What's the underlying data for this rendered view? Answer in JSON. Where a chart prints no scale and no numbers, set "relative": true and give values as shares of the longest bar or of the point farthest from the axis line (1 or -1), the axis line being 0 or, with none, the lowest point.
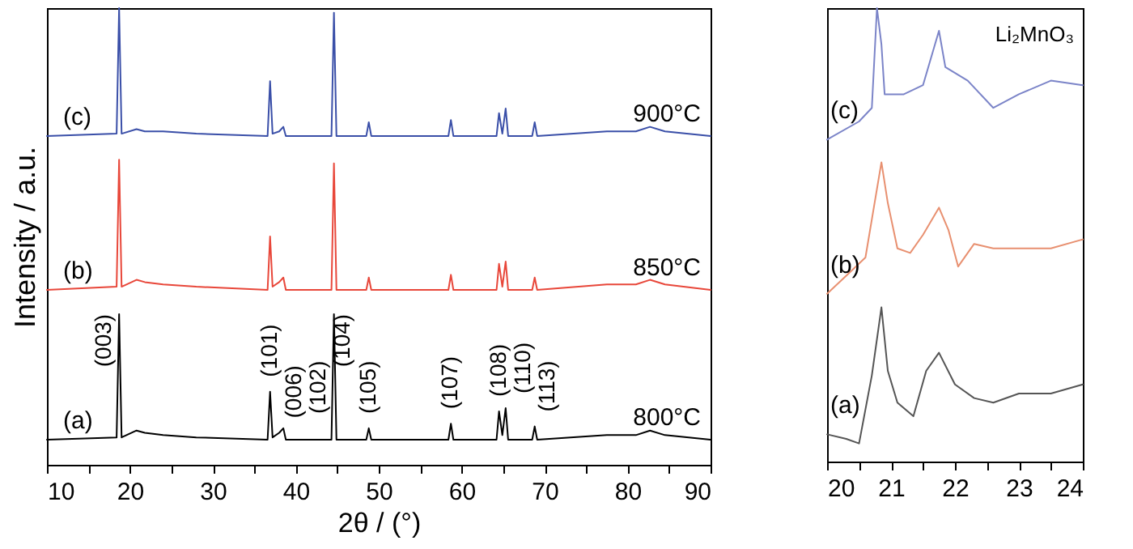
{
  "chart_data": [
    {
      "type": "line",
      "xlabel": "2θ / (°)",
      "ylabel": "Intensity / a.u.",
      "relative": true,
      "grid": false,
      "xlim": [
        10,
        90
      ],
      "xticks": [
        10,
        {
          "value": 15,
          "label": null
        },
        20,
        {
          "value": 25,
          "label": null
        },
        30,
        {
          "value": 35,
          "label": null
        },
        40,
        {
          "value": 45,
          "label": null
        },
        50,
        {
          "value": 55,
          "label": null
        },
        60,
        {
          "value": 65,
          "label": null
        },
        70,
        {
          "value": 75,
          "label": null
        },
        80,
        {
          "value": 85,
          "label": null
        },
        90
      ],
      "x": [
        10,
        18.4,
        18.7,
        19.0,
        20.8,
        21.8,
        24,
        28,
        36.6,
        36.9,
        37.2,
        38.0,
        38.5,
        38.8,
        44.3,
        44.6,
        44.9,
        48.5,
        48.8,
        49.1,
        58.4,
        58.7,
        59.0,
        64.2,
        64.5,
        64.9,
        65.3,
        65.6,
        68.5,
        68.8,
        69.1,
        77.5,
        81,
        82.7,
        84.5,
        90
      ],
      "series": [
        {
          "name": "(a)",
          "color": "#000000",
          "values": [
            0.055,
            0.06,
            0.33,
            0.06,
            0.075,
            0.07,
            0.065,
            0.06,
            0.055,
            0.16,
            0.06,
            0.07,
            0.08,
            0.055,
            0.055,
            0.33,
            0.055,
            0.055,
            0.08,
            0.055,
            0.055,
            0.09,
            0.055,
            0.055,
            0.117,
            0.065,
            0.124,
            0.055,
            0.055,
            0.084,
            0.055,
            0.065,
            0.065,
            0.075,
            0.065,
            0.055
          ]
        },
        {
          "name": "(b)",
          "color": "#e8473a",
          "values": [
            0.383,
            0.39,
            0.668,
            0.39,
            0.405,
            0.4,
            0.395,
            0.39,
            0.383,
            0.5,
            0.39,
            0.4,
            0.41,
            0.383,
            0.383,
            0.66,
            0.383,
            0.383,
            0.41,
            0.383,
            0.383,
            0.416,
            0.383,
            0.383,
            0.44,
            0.39,
            0.445,
            0.383,
            0.383,
            0.41,
            0.383,
            0.395,
            0.395,
            0.405,
            0.395,
            0.383
          ]
        },
        {
          "name": "(c)",
          "color": "#3a4fa8",
          "values": [
            0.72,
            0.725,
            1.0,
            0.725,
            0.735,
            0.73,
            0.73,
            0.725,
            0.72,
            0.84,
            0.725,
            0.73,
            0.74,
            0.72,
            0.72,
            0.99,
            0.72,
            0.72,
            0.75,
            0.72,
            0.72,
            0.755,
            0.72,
            0.72,
            0.77,
            0.725,
            0.78,
            0.72,
            0.72,
            0.75,
            0.72,
            0.73,
            0.73,
            0.74,
            0.73,
            0.72
          ]
        }
      ],
      "annotations": [
        "800°C",
        "850°C",
        "900°C",
        {
          "text": "(003)",
          "x": 18.7,
          "y": 0.33
        },
        {
          "text": "(101)",
          "x": 36.9,
          "y": 0.16
        },
        {
          "text": "(006)",
          "x": 38.0,
          "y": 0.07
        },
        {
          "text": "(102)",
          "x": 38.5,
          "y": 0.08
        },
        {
          "text": "(104)",
          "x": 44.6,
          "y": 0.33
        },
        {
          "text": "(105)",
          "x": 48.8,
          "y": 0.08
        },
        {
          "text": "(107)",
          "x": 58.7,
          "y": 0.09
        },
        {
          "text": "(108)",
          "x": 64.5,
          "y": 0.117
        },
        {
          "text": "(110)",
          "x": 65.3,
          "y": 0.124
        },
        {
          "text": "(113)",
          "x": 68.8,
          "y": 0.084
        }
      ]
    },
    {
      "type": "line",
      "title": "Li₂MnO₃",
      "relative": true,
      "grid": false,
      "xlim": [
        20,
        24
      ],
      "xticks": [
        20,
        {
          "value": 20.5,
          "label": null
        },
        21,
        {
          "value": 21.5,
          "label": null
        },
        22,
        {
          "value": 22.5,
          "label": null
        },
        23,
        {
          "value": 23.5,
          "label": null
        },
        24
      ],
      "series": [
        {
          "name": "(a)",
          "color": "#555555",
          "x": [
            20,
            20.3,
            20.5,
            20.7,
            20.85,
            20.95,
            21.1,
            21.35,
            21.55,
            21.75,
            22.0,
            22.3,
            22.6,
            23,
            23.5,
            24
          ],
          "values": [
            0.06,
            0.05,
            0.04,
            0.19,
            0.34,
            0.2,
            0.13,
            0.1,
            0.2,
            0.24,
            0.17,
            0.14,
            0.13,
            0.15,
            0.15,
            0.17
          ]
        },
        {
          "name": "(b)",
          "color": "#e89070",
          "x": [
            20,
            20.3,
            20.6,
            20.85,
            20.95,
            21.1,
            21.3,
            21.5,
            21.75,
            21.9,
            22.05,
            22.3,
            22.6,
            23,
            23.5,
            24
          ],
          "values": [
            0.37,
            0.41,
            0.45,
            0.66,
            0.57,
            0.47,
            0.46,
            0.5,
            0.56,
            0.51,
            0.43,
            0.48,
            0.47,
            0.47,
            0.47,
            0.49
          ]
        },
        {
          "name": "(c)",
          "color": "#7b84c8",
          "x": [
            20,
            20.5,
            20.7,
            20.78,
            20.85,
            20.9,
            21.2,
            21.5,
            21.75,
            21.85,
            22.2,
            22.6,
            23,
            23.5,
            24
          ],
          "values": [
            0.71,
            0.75,
            0.78,
            1.0,
            0.92,
            0.81,
            0.81,
            0.83,
            0.95,
            0.87,
            0.84,
            0.78,
            0.81,
            0.84,
            0.83
          ]
        }
      ]
    }
  ]
}
